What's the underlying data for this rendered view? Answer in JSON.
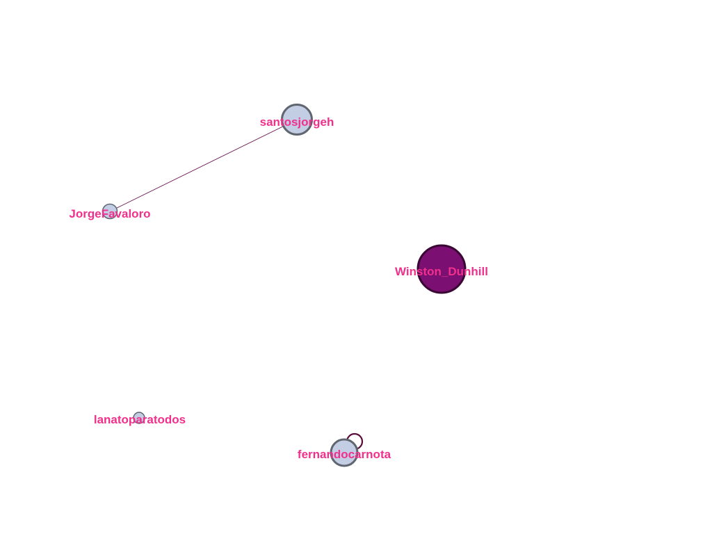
{
  "colors": {
    "background": "#ffffff",
    "label": "#f0308c",
    "node_light_fill": "#c3cde3",
    "node_light_stroke": "#5f6670",
    "node_hub_fill": "#7b0f72",
    "node_hub_stroke": "#3a0634",
    "edge": "#6a1450",
    "self_loop": "#5a0a3a"
  },
  "nodes": [
    {
      "id": "santosjorgeh",
      "label": "santosjorgeh",
      "style": "light"
    },
    {
      "id": "JorgeFavaloro",
      "label": "JorgeFavaloro",
      "style": "light"
    },
    {
      "id": "Winston_Dunhill",
      "label": "Winston_Dunhill",
      "style": "hub"
    },
    {
      "id": "lanatoparatodos",
      "label": "lanatoparatodos",
      "style": "light"
    },
    {
      "id": "fernandocarnota",
      "label": "fernandocarnota",
      "style": "light"
    }
  ],
  "edges": [
    {
      "source": "santosjorgeh",
      "target": "JorgeFavaloro"
    },
    {
      "source": "fernandocarnota",
      "target": "fernandocarnota"
    }
  ]
}
